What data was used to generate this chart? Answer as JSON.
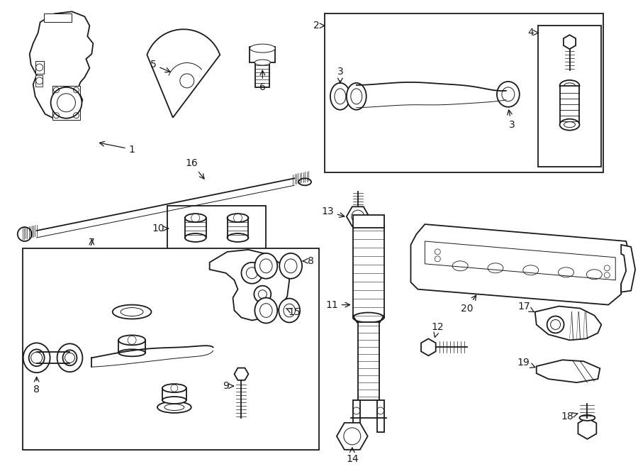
{
  "bg_color": "#ffffff",
  "line_color": "#1a1a1a",
  "fig_width": 9.0,
  "fig_height": 6.61,
  "dpi": 100,
  "lw_main": 1.3,
  "lw_thin": 0.7,
  "label_fontsize": 10
}
